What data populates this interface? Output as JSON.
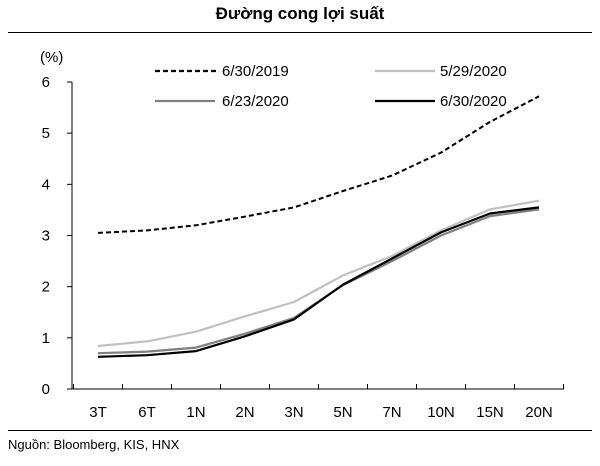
{
  "title": "Đường cong lợi suất",
  "source": "Nguồn: Bloomberg, KIS, HNX",
  "chart_data": {
    "type": "line",
    "title": "Đường cong lợi suất",
    "ylabel": "(%)",
    "xlabel": "",
    "ylim": [
      0,
      6
    ],
    "yticks": [
      "0",
      "1",
      "2",
      "3",
      "4",
      "5",
      "6"
    ],
    "grid": false,
    "legend_position": "top",
    "categories": [
      "3T",
      "6T",
      "1N",
      "2N",
      "3N",
      "5N",
      "7N",
      "10N",
      "15N",
      "20N"
    ],
    "series": [
      {
        "name": "6/30/2019",
        "color": "#000000",
        "style": "dashed",
        "values": [
          3.05,
          3.1,
          3.2,
          3.37,
          3.55,
          3.87,
          4.17,
          4.62,
          5.22,
          5.72
        ]
      },
      {
        "name": "5/29/2020",
        "color": "#c0c0c0",
        "style": "solid",
        "values": [
          0.84,
          0.93,
          1.12,
          1.42,
          1.7,
          2.22,
          2.6,
          3.1,
          3.51,
          3.68
        ]
      },
      {
        "name": "6/23/2020",
        "color": "#7f7f7f",
        "style": "solid",
        "values": [
          0.7,
          0.73,
          0.81,
          1.08,
          1.39,
          2.03,
          2.5,
          3.0,
          3.38,
          3.51
        ]
      },
      {
        "name": "6/30/2020",
        "color": "#000000",
        "style": "solid",
        "values": [
          0.63,
          0.66,
          0.74,
          1.03,
          1.36,
          2.04,
          2.55,
          3.06,
          3.43,
          3.55
        ]
      }
    ]
  }
}
